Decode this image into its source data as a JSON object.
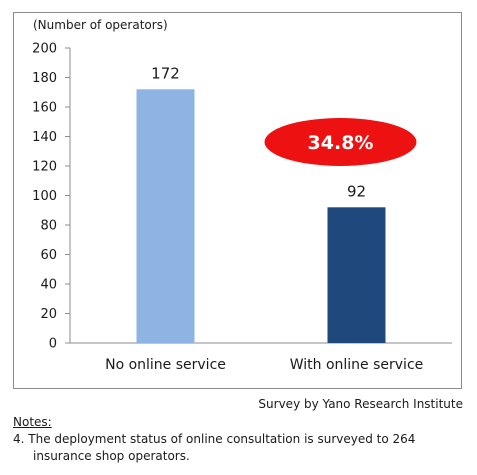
{
  "chart_data": {
    "type": "bar",
    "ylabel": "(Number of operators)",
    "categories": [
      "No online service",
      "With online service"
    ],
    "values": [
      172,
      92
    ],
    "data_labels": [
      "172",
      "92"
    ],
    "ylim": [
      0,
      200
    ],
    "yticks": [
      0,
      20,
      40,
      60,
      80,
      100,
      120,
      140,
      160,
      180,
      200
    ],
    "grid": false,
    "colors": [
      "#8eb4e3",
      "#1f497d"
    ],
    "callout": {
      "text": "34.8%",
      "color": "#ee1111",
      "text_color": "#ffffff"
    }
  },
  "source": "Survey by Yano Research Institute",
  "notes": {
    "title": "Notes:",
    "line1": "4.  The deployment status of online consultation is surveyed to 264",
    "line2": "insurance shop operators."
  }
}
